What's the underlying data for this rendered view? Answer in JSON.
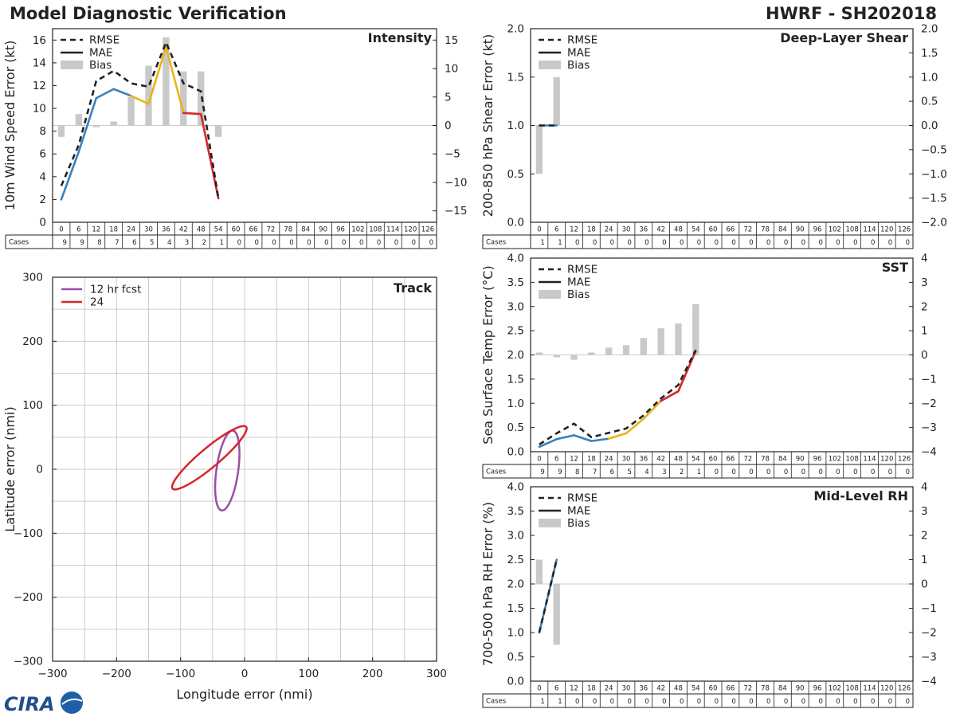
{
  "header": {
    "title": "Model Diagnostic Verification",
    "storm": "HWRF - SH202018"
  },
  "leadtimes": [
    "0",
    "6",
    "12",
    "18",
    "24",
    "30",
    "36",
    "42",
    "48",
    "54",
    "60",
    "66",
    "72",
    "78",
    "84",
    "90",
    "96",
    "102",
    "108",
    "114",
    "120",
    "126"
  ],
  "legend": {
    "rmse": "RMSE",
    "mae": "MAE",
    "bias": "Bias"
  },
  "cases_label": "Cases",
  "logo_text": "CIRA",
  "chart_data": [
    {
      "id": "intensity",
      "type": "line",
      "title": "Intensity",
      "ylabel": "10m Wind Speed Error (kt)",
      "ylim": [
        0,
        17
      ],
      "yticks": [
        0,
        2,
        4,
        6,
        8,
        10,
        12,
        14,
        16
      ],
      "y2lim": [
        -17,
        17
      ],
      "y2ticks": [
        -15,
        -10,
        -5,
        0,
        5,
        10,
        15
      ],
      "rmse": [
        3.2,
        6.8,
        12.4,
        13.3,
        12.2,
        11.9,
        15.8,
        12.2,
        11.5,
        2.1
      ],
      "mae": [
        2.0,
        6.2,
        10.9,
        11.7,
        11.1,
        10.4,
        15.4,
        9.6,
        9.5,
        2.1
      ],
      "bias": [
        -2.0,
        2.0,
        -0.3,
        0.7,
        5.0,
        10.5,
        15.5,
        9.5,
        9.5,
        -2.0
      ],
      "cases": [
        9,
        9,
        8,
        7,
        6,
        5,
        4,
        3,
        2,
        1,
        0,
        0,
        0,
        0,
        0,
        0,
        0,
        0,
        0,
        0,
        0,
        0
      ]
    },
    {
      "id": "shear",
      "type": "line",
      "title": "Deep-Layer Shear",
      "ylabel": "200-850 hPa Shear Error (kt)",
      "ylim": [
        0,
        2
      ],
      "yticks": [
        0.0,
        0.5,
        1.0,
        1.5,
        2.0
      ],
      "y2lim": [
        -2,
        2
      ],
      "y2ticks": [
        -2.0,
        -1.5,
        -1.0,
        -0.5,
        0.0,
        0.5,
        1.0,
        1.5,
        2.0
      ],
      "rmse": [
        1.0,
        1.0
      ],
      "mae": [
        1.0,
        1.0
      ],
      "bias": [
        -1.0,
        1.0
      ],
      "cases": [
        1,
        1,
        0,
        0,
        0,
        0,
        0,
        0,
        0,
        0,
        0,
        0,
        0,
        0,
        0,
        0,
        0,
        0,
        0,
        0,
        0,
        0
      ]
    },
    {
      "id": "sst",
      "type": "line",
      "title": "SST",
      "ylabel": "Sea Surface Temp Error (°C)",
      "ylim": [
        0,
        4
      ],
      "yticks": [
        0.0,
        0.5,
        1.0,
        1.5,
        2.0,
        2.5,
        3.0,
        3.5,
        4.0
      ],
      "y2lim": [
        -4,
        4
      ],
      "y2ticks": [
        -4,
        -3,
        -2,
        -1,
        0,
        1,
        2,
        3,
        4
      ],
      "rmse": [
        0.15,
        0.38,
        0.58,
        0.3,
        0.39,
        0.48,
        0.75,
        1.1,
        1.38,
        2.1
      ],
      "mae": [
        0.1,
        0.26,
        0.34,
        0.22,
        0.27,
        0.38,
        0.68,
        1.05,
        1.25,
        2.08
      ],
      "bias": [
        0.1,
        -0.1,
        -0.2,
        0.1,
        0.3,
        0.4,
        0.7,
        1.1,
        1.3,
        2.1
      ],
      "cases": [
        9,
        9,
        8,
        7,
        6,
        5,
        4,
        3,
        2,
        1,
        0,
        0,
        0,
        0,
        0,
        0,
        0,
        0,
        0,
        0,
        0,
        0
      ]
    },
    {
      "id": "rh",
      "type": "line",
      "title": "Mid-Level RH",
      "ylabel": "700-500 hPa RH Error (%)",
      "ylim": [
        0,
        4
      ],
      "yticks": [
        0.0,
        0.5,
        1.0,
        1.5,
        2.0,
        2.5,
        3.0,
        3.5,
        4.0
      ],
      "y2lim": [
        -4,
        4
      ],
      "y2ticks": [
        -4,
        -3,
        -2,
        -1,
        0,
        1,
        2,
        3,
        4
      ],
      "rmse": [
        1.0,
        2.5
      ],
      "mae": [
        1.0,
        2.5
      ],
      "bias": [
        1.0,
        -2.5
      ],
      "cases": [
        1,
        1,
        0,
        0,
        0,
        0,
        0,
        0,
        0,
        0,
        0,
        0,
        0,
        0,
        0,
        0,
        0,
        0,
        0,
        0,
        0,
        0
      ]
    },
    {
      "id": "track",
      "type": "scatter",
      "title": "Track",
      "xlabel": "Longitude error (nmi)",
      "ylabel": "Latitude error (nmi)",
      "xlim": [
        -300,
        300
      ],
      "ylim": [
        -300,
        300
      ],
      "xticks": [
        -300,
        -200,
        -100,
        0,
        100,
        200,
        300
      ],
      "yticks": [
        -300,
        -200,
        -100,
        0,
        100,
        200,
        300
      ],
      "ellipses": [
        {
          "label": "12 hr fcst",
          "color": "#9b4ea6",
          "cx": -27,
          "cy": -2,
          "a": 63,
          "b": 17,
          "angle_deg": 82
        },
        {
          "label": "24",
          "color": "#d7262b",
          "cx": -55,
          "cy": 18,
          "a": 75,
          "b": 15,
          "angle_deg": 40
        }
      ]
    }
  ],
  "colors": {
    "blue": "#3a81bb",
    "yellow": "#e8b41a",
    "red": "#d7262b",
    "rmse": "#222222",
    "bias": "#c9c9c9",
    "grid": "#cccccc"
  }
}
